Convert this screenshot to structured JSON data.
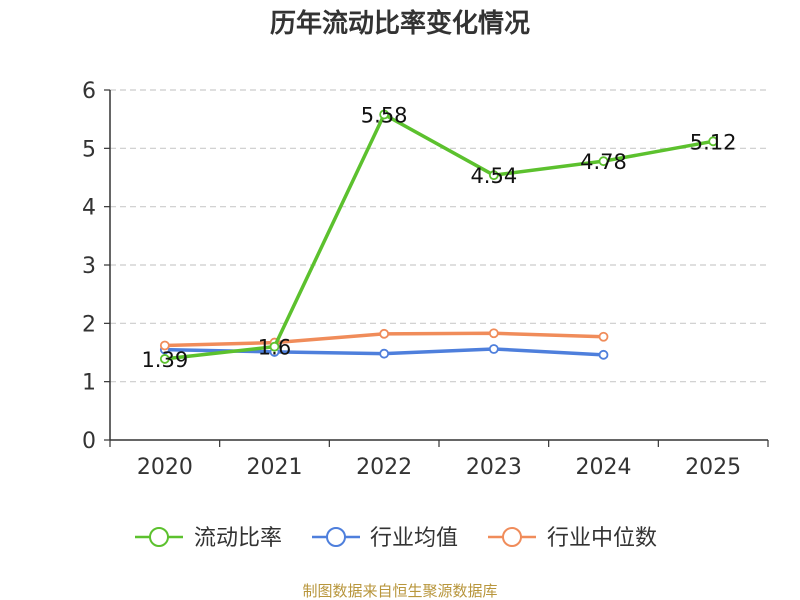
{
  "chart_data": {
    "type": "line",
    "title": "历年流动比率变化情况",
    "categories": [
      "2020",
      "2021",
      "2022",
      "2023",
      "2024",
      "2025"
    ],
    "yticks": [
      "0",
      "1",
      "2",
      "3",
      "4",
      "5",
      "6"
    ],
    "ylim": [
      0,
      6
    ],
    "grid": true,
    "legend_position": "bottom",
    "series": [
      {
        "name": "流动比率",
        "color": "#5cc12e",
        "values": [
          1.39,
          1.6,
          5.58,
          4.54,
          4.78,
          5.12
        ],
        "labels": [
          "1.39",
          "1.6",
          "5.58",
          "4.54",
          "4.78",
          "5.12"
        ]
      },
      {
        "name": "行业均值",
        "color": "#4e7fdc",
        "values": [
          1.55,
          1.51,
          1.48,
          1.56,
          1.46,
          null
        ]
      },
      {
        "name": "行业中位数",
        "color": "#f08c5a",
        "values": [
          1.62,
          1.67,
          1.82,
          1.83,
          1.77,
          null
        ]
      }
    ],
    "source": "制图数据来自恒生聚源数据库"
  }
}
